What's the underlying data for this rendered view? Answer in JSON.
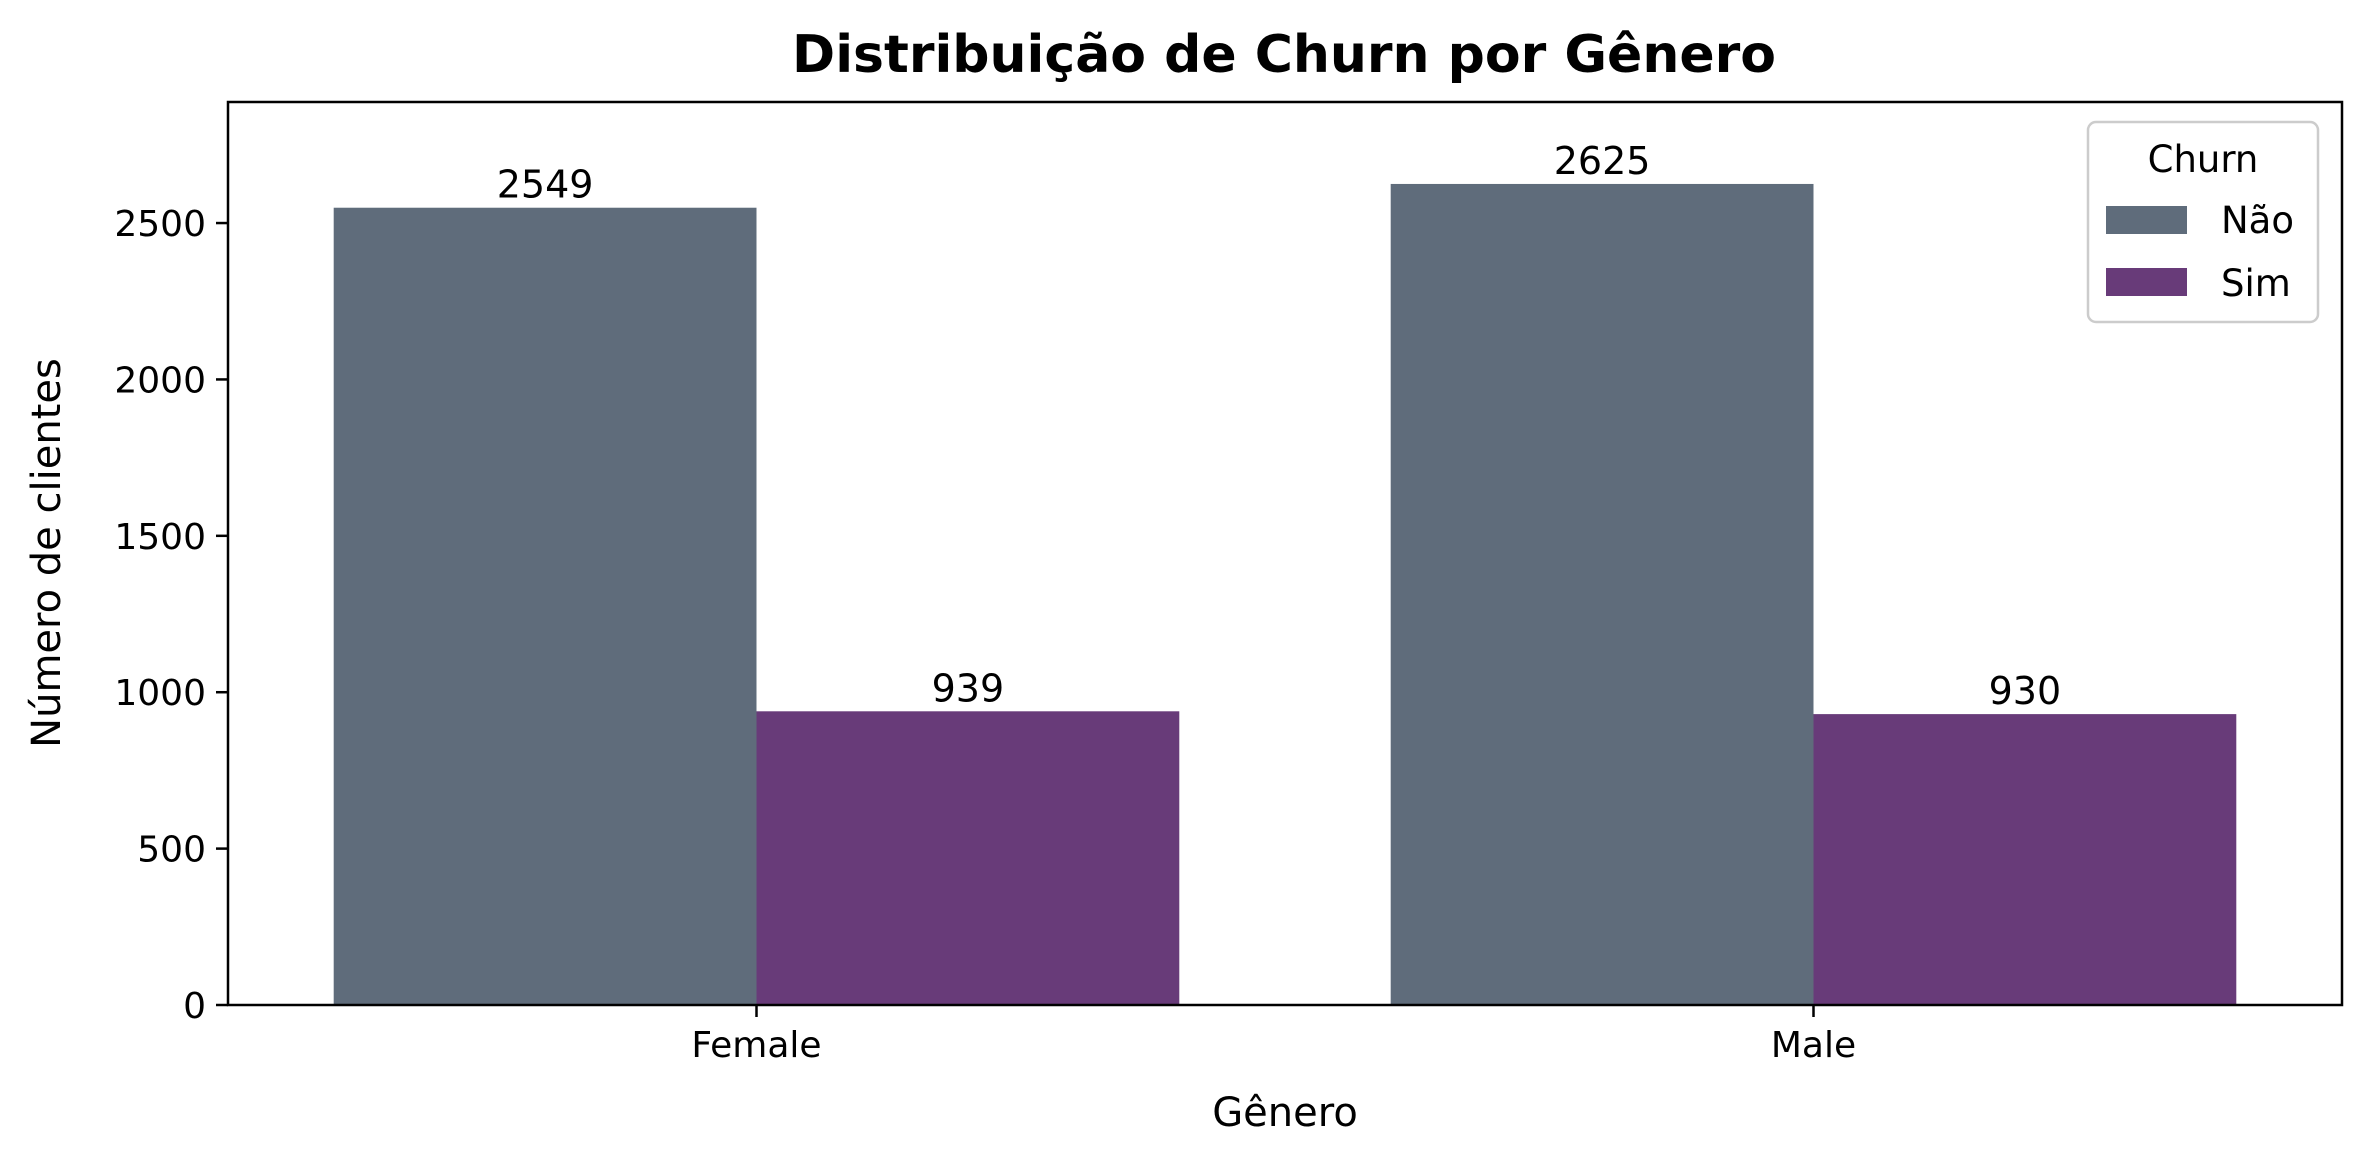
{
  "chart_data": {
    "type": "bar",
    "title": "Distribuição de Churn por Gênero",
    "xlabel": "Gênero",
    "ylabel": "Número de clientes",
    "categories": [
      "Female",
      "Male"
    ],
    "series": [
      {
        "name": "Não",
        "values": [
          2549,
          2625
        ],
        "color": "#5f6c7b"
      },
      {
        "name": "Sim",
        "values": [
          939,
          930
        ],
        "color": "#683b79"
      }
    ],
    "ylim": [
      0,
      2887
    ],
    "yticks": [
      0,
      500,
      1000,
      1500,
      2000,
      2500
    ],
    "grid": false,
    "legend": {
      "title": "Churn",
      "placement": "top-right"
    }
  }
}
